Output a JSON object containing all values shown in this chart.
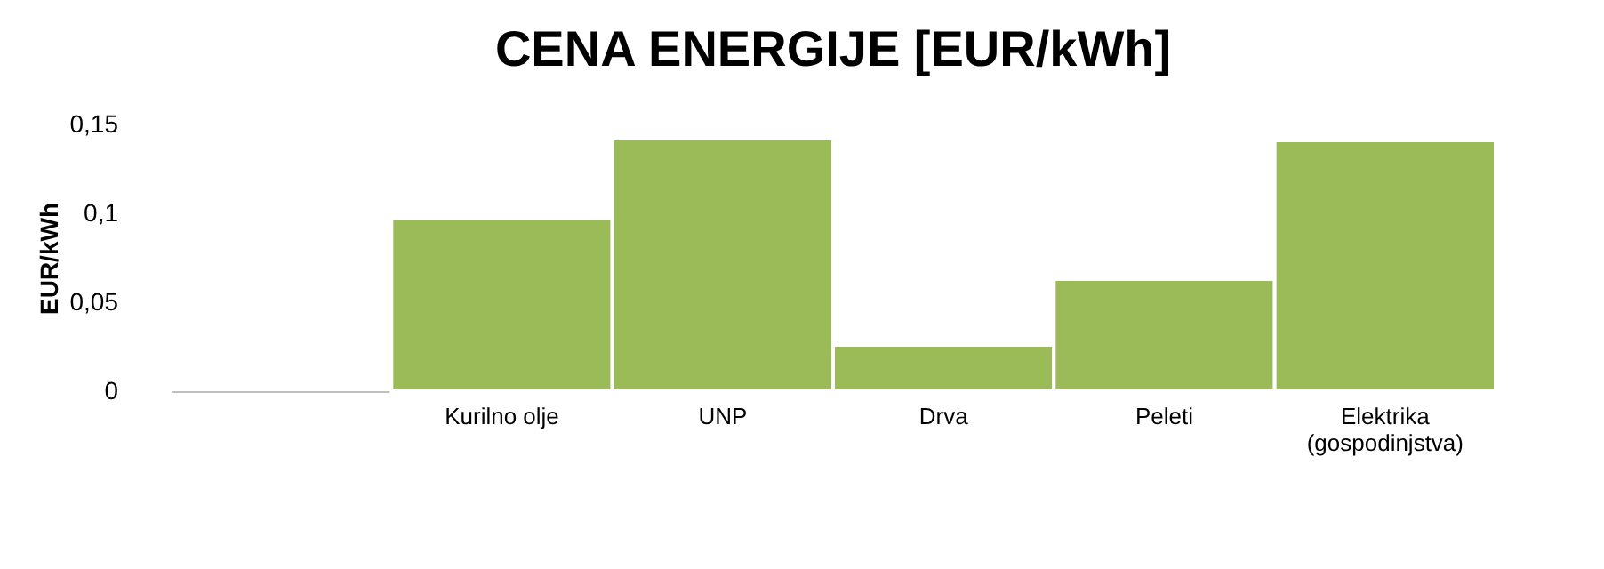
{
  "chart_data": {
    "type": "bar",
    "title": "CENA ENERGIJE [EUR/kWh]",
    "ylabel": "EUR/kWh",
    "categories": [
      null,
      "Kurilno olje",
      "UNP",
      "Drva",
      "Peleti",
      "Elektrika\n(gospodinjstva)"
    ],
    "values": [
      null,
      0.097,
      0.142,
      0.026,
      0.063,
      0.141
    ],
    "color": "#9bbb59",
    "ylim": [
      0,
      0.15
    ],
    "yticks": [
      {
        "value": 0,
        "label": "0"
      },
      {
        "value": 0.05,
        "label": "0,05"
      },
      {
        "value": 0.1,
        "label": "0,1"
      },
      {
        "value": 0.15,
        "label": "0,15"
      }
    ],
    "grid": false
  }
}
